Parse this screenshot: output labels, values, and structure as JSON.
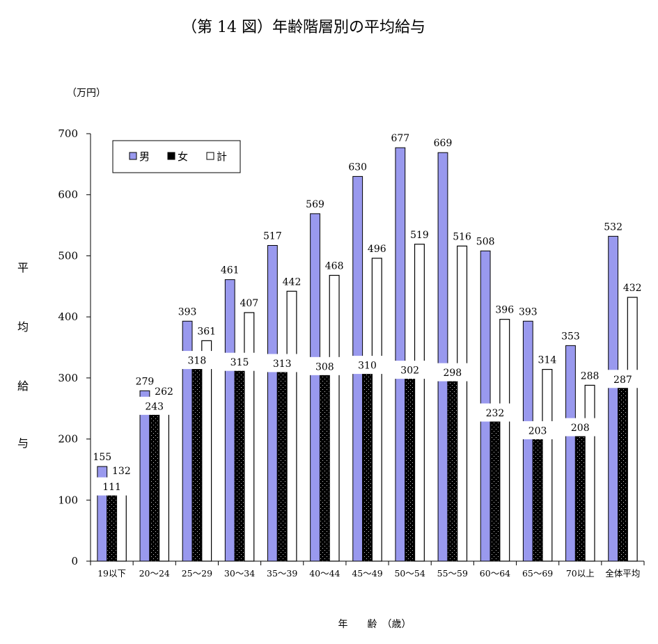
{
  "chart_data": {
    "type": "bar",
    "title": "（第 14 図）年齢階層別の平均給与",
    "unit_label": "（万円）",
    "ylabel": "平均給与",
    "xlabel": "年　　齢　（歳）",
    "ylim": [
      0,
      700
    ],
    "yticks": [
      0,
      100,
      200,
      300,
      400,
      500,
      600,
      700
    ],
    "grid": false,
    "legend_position": "top-left",
    "categories": [
      "19以下",
      "20～24",
      "25～29",
      "30～34",
      "35～39",
      "40～44",
      "45～49",
      "50～54",
      "55～59",
      "60～64",
      "65～69",
      "70以上",
      "全体平均"
    ],
    "series": [
      {
        "name": "男",
        "color": "#9999ee",
        "values": [
          155,
          279,
          393,
          461,
          517,
          569,
          630,
          677,
          669,
          508,
          393,
          353,
          532
        ]
      },
      {
        "name": "女",
        "color": "#000000",
        "values": [
          111,
          243,
          318,
          315,
          313,
          308,
          310,
          302,
          298,
          232,
          203,
          208,
          287
        ]
      },
      {
        "name": "計",
        "color": "#ffffff",
        "values": [
          132,
          262,
          361,
          407,
          442,
          468,
          496,
          519,
          516,
          396,
          314,
          288,
          432
        ]
      }
    ],
    "legend_marks": [
      "□",
      "■",
      "□"
    ]
  }
}
